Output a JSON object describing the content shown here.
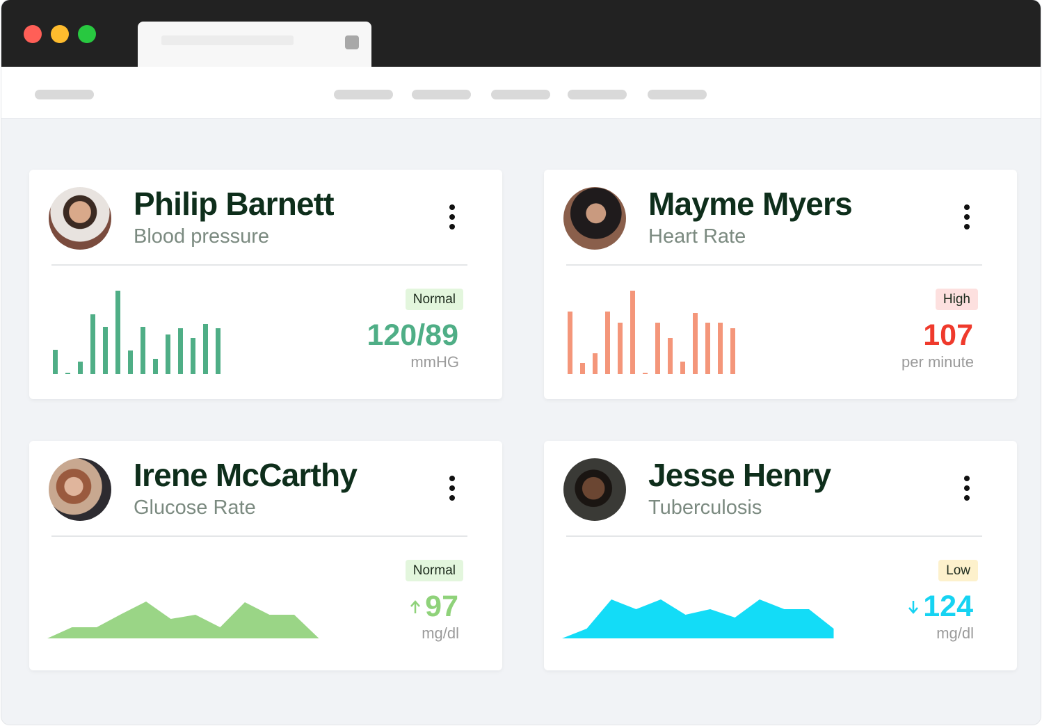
{
  "cards": [
    {
      "name": "Philip Barnett",
      "subtitle": "Blood pressure",
      "status": "Normal",
      "value": "120/89",
      "unit": "mmHG",
      "chart": {
        "type": "bar",
        "color": "#4fae86",
        "values": [
          35,
          2,
          18,
          86,
          68,
          120,
          34,
          68,
          22,
          57,
          66,
          52,
          72,
          66
        ]
      },
      "value_color": "#4fae86",
      "status_color": "#e3f6dd"
    },
    {
      "name": "Mayme Myers",
      "subtitle": "Heart Rate",
      "status": "High",
      "value": 107,
      "unit": "per minute",
      "chart": {
        "type": "bar",
        "color": "#f4967a",
        "values": [
          90,
          16,
          30,
          90,
          74,
          120,
          2,
          74,
          52,
          18,
          88,
          74,
          74,
          66
        ]
      },
      "value_color": "#ef3a2c",
      "status_color": "#fde0df"
    },
    {
      "name": "Irene McCarthy",
      "subtitle": "Glucose Rate",
      "status": "Normal",
      "value": 97,
      "unit": "mg/dl",
      "trend": "up",
      "chart": {
        "type": "area",
        "color": "#9ad586",
        "values": [
          0,
          16,
          16,
          35,
          53,
          28,
          34,
          16,
          52,
          34,
          34,
          0
        ]
      },
      "value_color": "#8fd27a",
      "status_color": "#e3f6dd"
    },
    {
      "name": "Jesse Henry",
      "subtitle": "Tuberculosis",
      "status": "Low",
      "value": 124,
      "unit": "mg/dl",
      "trend": "down",
      "chart": {
        "type": "area",
        "color": "#13dcf7",
        "values": [
          0,
          14,
          56,
          42,
          56,
          34,
          42,
          30,
          56,
          42,
          42,
          14
        ]
      },
      "value_color": "#16d3f2",
      "status_color": "#fdf1cc"
    }
  ]
}
